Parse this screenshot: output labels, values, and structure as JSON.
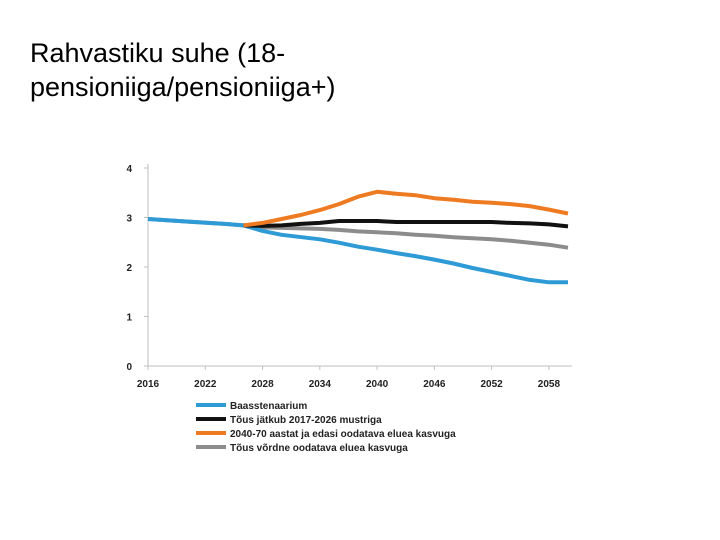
{
  "slide": {
    "title_line1": "Rahvastiku suhe (18-",
    "title_line2": "pensioniiga/pensioniiga+)"
  },
  "chart_data": {
    "type": "line",
    "title": "",
    "xlabel": "",
    "ylabel": "",
    "ylim": [
      0,
      4
    ],
    "yticks": [
      0,
      1,
      2,
      3,
      4
    ],
    "xlim": [
      2016,
      2060
    ],
    "xticks": [
      2016,
      2022,
      2028,
      2034,
      2040,
      2046,
      2052,
      2058
    ],
    "grid": false,
    "legend_position": "bottom",
    "series": [
      {
        "name": "Baasstenaarium",
        "color": "#2e9ad6",
        "x": [
          2016,
          2020,
          2024,
          2026,
          2028,
          2030,
          2034,
          2036,
          2038,
          2040,
          2042,
          2044,
          2046,
          2048,
          2050,
          2052,
          2054,
          2056,
          2058,
          2060
        ],
        "y": [
          2.97,
          2.92,
          2.87,
          2.84,
          2.73,
          2.65,
          2.56,
          2.49,
          2.41,
          2.35,
          2.28,
          2.22,
          2.15,
          2.07,
          1.98,
          1.9,
          1.82,
          1.74,
          1.69,
          1.69
        ]
      },
      {
        "name": "Tõus jätkub 2017-2026 mustriga",
        "color": "#111111",
        "x": [
          2026,
          2028,
          2030,
          2032,
          2034,
          2036,
          2038,
          2040,
          2042,
          2046,
          2050,
          2052,
          2054,
          2056,
          2058,
          2060
        ],
        "y": [
          2.84,
          2.83,
          2.84,
          2.87,
          2.89,
          2.93,
          2.93,
          2.93,
          2.91,
          2.91,
          2.91,
          2.91,
          2.89,
          2.88,
          2.86,
          2.82
        ]
      },
      {
        "name": "2040-70 aastat ja edasi oodatava eluea kasvuga",
        "color": "#ee7b22",
        "x": [
          2026,
          2028,
          2030,
          2032,
          2034,
          2036,
          2038,
          2040,
          2042,
          2044,
          2046,
          2048,
          2050,
          2052,
          2054,
          2056,
          2058,
          2060
        ],
        "y": [
          2.84,
          2.89,
          2.97,
          3.05,
          3.15,
          3.27,
          3.42,
          3.52,
          3.48,
          3.45,
          3.39,
          3.36,
          3.32,
          3.3,
          3.27,
          3.23,
          3.16,
          3.08
        ]
      },
      {
        "name": "Tõus võrdne oodatava eluea kasvuga",
        "color": "#8c8c8c",
        "x": [
          2016,
          2020,
          2024,
          2026,
          2028,
          2030,
          2034,
          2036,
          2038,
          2040,
          2042,
          2044,
          2046,
          2048,
          2050,
          2052,
          2054,
          2056,
          2058,
          2060
        ],
        "y": [
          2.97,
          2.92,
          2.87,
          2.84,
          2.8,
          2.79,
          2.77,
          2.75,
          2.72,
          2.7,
          2.68,
          2.65,
          2.63,
          2.6,
          2.58,
          2.56,
          2.53,
          2.49,
          2.45,
          2.39
        ]
      }
    ]
  }
}
